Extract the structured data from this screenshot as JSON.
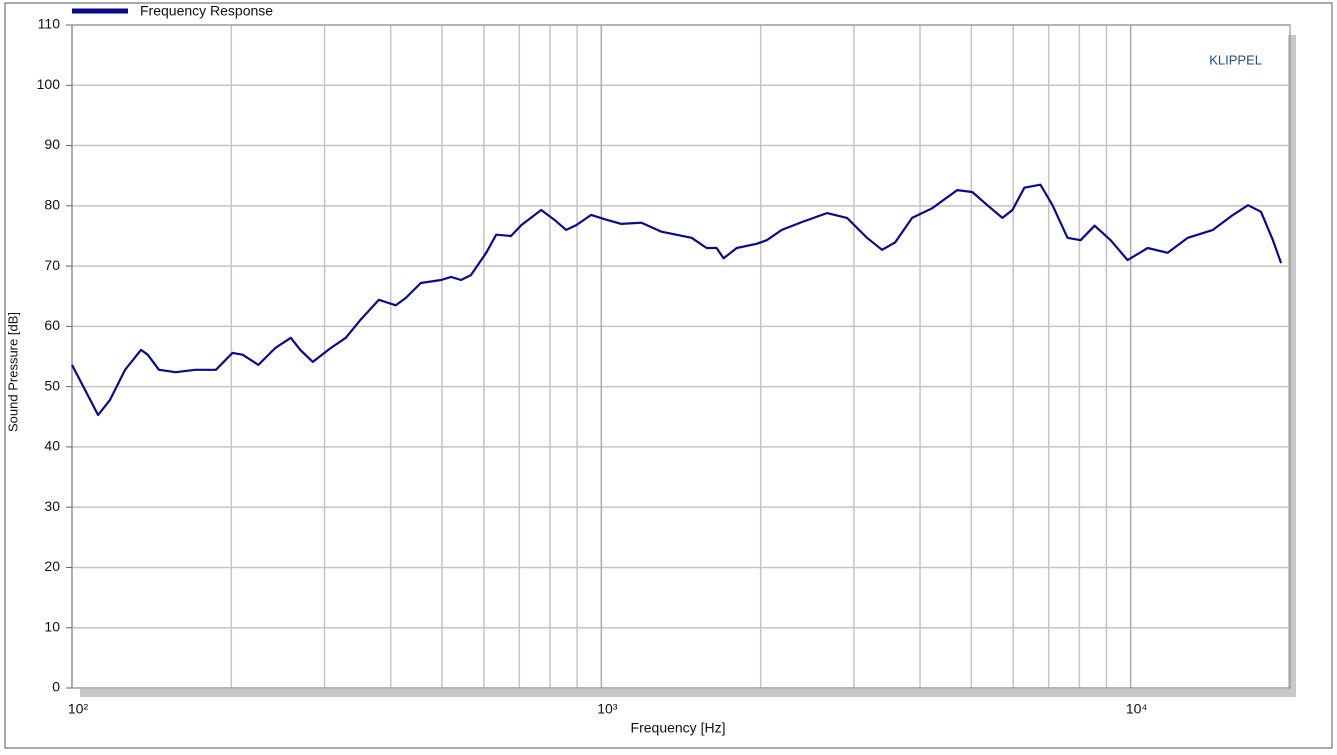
{
  "chart_data": {
    "type": "line",
    "legend_label": "Frequency Response",
    "annotation": "KLIPPEL",
    "xlabel": "Frequency  [Hz]",
    "ylabel": "Sound Pressure  [dB]",
    "xscale": "log",
    "grid": true,
    "minor_grid": true,
    "xlim": [
      100,
      20000
    ],
    "ylim": [
      0,
      110
    ],
    "xticks": [
      {
        "value": 100,
        "label": "10²"
      },
      {
        "value": 1000,
        "label": "10³"
      },
      {
        "value": 10000,
        "label": "10⁴"
      }
    ],
    "yticks": [
      0,
      10,
      20,
      30,
      40,
      50,
      60,
      70,
      80,
      90,
      100,
      110
    ],
    "series": [
      {
        "name": "Frequency Response",
        "color": "#0a0a8c",
        "x": [
          100,
          112,
          118,
          126,
          135,
          139,
          146,
          157,
          171,
          187,
          201,
          210,
          225,
          242,
          259,
          270,
          285,
          308,
          329,
          351,
          380,
          409,
          427,
          456,
          498,
          520,
          543,
          567,
          606,
          633,
          675,
          706,
          770,
          815,
          858,
          897,
          957,
          1022,
          1091,
          1191,
          1299,
          1481,
          1581,
          1651,
          1702,
          1802,
          1966,
          2054,
          2193,
          2392,
          2668,
          2911,
          3176,
          3391,
          3588,
          3865,
          4217,
          4703,
          5021,
          5361,
          5724,
          5978,
          6299,
          6754,
          7118,
          7599,
          8043,
          8548,
          9165,
          9869,
          10770,
          11750,
          12820,
          14300,
          15610,
          16660,
          17630,
          18570,
          19240
        ],
        "values": [
          53.6,
          45.3,
          47.8,
          52.8,
          56.1,
          55.3,
          52.8,
          52.4,
          52.8,
          52.8,
          55.6,
          55.3,
          53.6,
          56.4,
          58.1,
          56.1,
          54.1,
          56.4,
          58.1,
          61.1,
          64.4,
          63.5,
          64.7,
          67.2,
          67.7,
          68.2,
          67.7,
          68.5,
          72.2,
          75.2,
          75.0,
          76.8,
          79.3,
          77.7,
          76.0,
          76.8,
          78.5,
          77.7,
          77.0,
          77.2,
          75.7,
          74.7,
          73.0,
          73.0,
          71.3,
          73.0,
          73.7,
          74.3,
          76.0,
          77.3,
          78.8,
          78.0,
          74.7,
          72.7,
          73.9,
          78.0,
          79.6,
          82.6,
          82.3,
          80.1,
          78.0,
          79.3,
          83.0,
          83.5,
          80.1,
          74.7,
          74.3,
          76.7,
          74.3,
          71.0,
          73.0,
          72.2,
          74.7,
          76.0,
          78.5,
          80.1,
          79.0,
          74.3,
          70.5
        ]
      }
    ]
  }
}
